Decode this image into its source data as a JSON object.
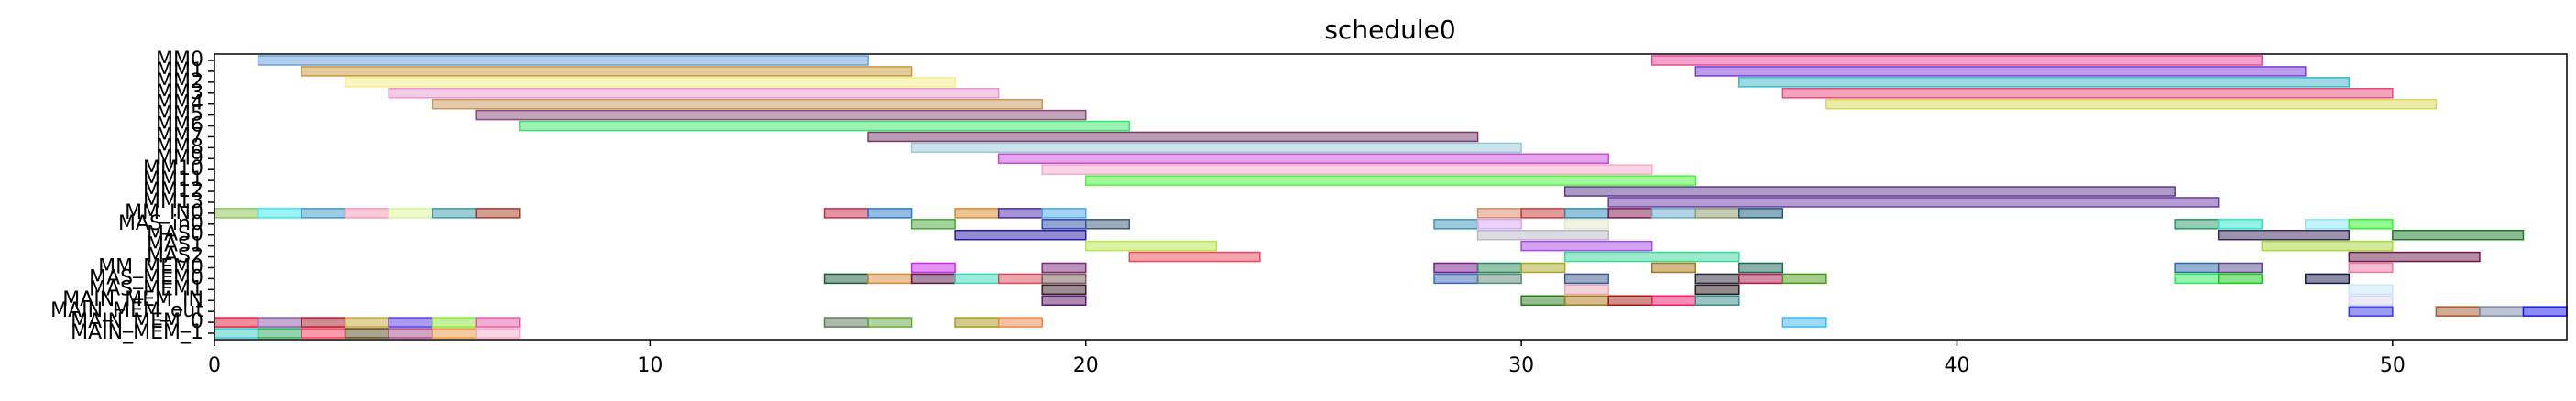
{
  "chart_data": {
    "type": "gantt",
    "title": "schedule0",
    "xlim": [
      0,
      54
    ],
    "xticks": [
      0,
      10,
      20,
      30,
      40,
      50
    ],
    "rows": [
      {
        "label": "MM0",
        "tasks": [
          {
            "start": 1,
            "end": 15,
            "color": "#6a9fd8"
          },
          {
            "start": 33,
            "end": 47,
            "color": "#e8489a"
          }
        ]
      },
      {
        "label": "MM1",
        "tasks": [
          {
            "start": 2,
            "end": 16,
            "color": "#c89a3a"
          },
          {
            "start": 34,
            "end": 48,
            "color": "#7a3ad8"
          }
        ]
      },
      {
        "label": "MM2",
        "tasks": [
          {
            "start": 3,
            "end": 17,
            "color": "#f4ee8a"
          },
          {
            "start": 35,
            "end": 49,
            "color": "#3ab8c8"
          }
        ]
      },
      {
        "label": "MM3",
        "tasks": [
          {
            "start": 4,
            "end": 18,
            "color": "#e898d0"
          },
          {
            "start": 36,
            "end": 50,
            "color": "#e84a7a"
          }
        ]
      },
      {
        "label": "MM4",
        "tasks": [
          {
            "start": 5,
            "end": 19,
            "color": "#c8985a"
          },
          {
            "start": 37,
            "end": 51,
            "color": "#d8d85a"
          }
        ]
      },
      {
        "label": "MM5",
        "tasks": [
          {
            "start": 6,
            "end": 20,
            "color": "#8a4a7a"
          }
        ]
      },
      {
        "label": "MM6",
        "tasks": [
          {
            "start": 7,
            "end": 21,
            "color": "#3ae86a"
          }
        ]
      },
      {
        "label": "MM7",
        "tasks": [
          {
            "start": 15,
            "end": 29,
            "color": "#7a3a6a"
          }
        ]
      },
      {
        "label": "MM8",
        "tasks": [
          {
            "start": 16,
            "end": 30,
            "color": "#98c8d8"
          }
        ]
      },
      {
        "label": "MM9",
        "tasks": [
          {
            "start": 18,
            "end": 32,
            "color": "#c84ad8"
          }
        ]
      },
      {
        "label": "MM10",
        "tasks": [
          {
            "start": 19,
            "end": 33,
            "color": "#f8a8c8"
          }
        ]
      },
      {
        "label": "MM11",
        "tasks": [
          {
            "start": 20,
            "end": 34,
            "color": "#4af83a"
          }
        ]
      },
      {
        "label": "MM12",
        "tasks": [
          {
            "start": 31,
            "end": 45,
            "color": "#5a3a8a"
          }
        ]
      },
      {
        "label": "MM13",
        "tasks": [
          {
            "start": 32,
            "end": 46,
            "color": "#6a3aa8"
          }
        ]
      },
      {
        "label": "MM_IN0",
        "tasks": [
          {
            "start": 0,
            "end": 1,
            "color": "#8ac85a"
          },
          {
            "start": 1,
            "end": 2,
            "color": "#3ae8e8"
          },
          {
            "start": 2,
            "end": 3,
            "color": "#3a9ac8"
          },
          {
            "start": 3,
            "end": 4,
            "color": "#f898b8"
          },
          {
            "start": 4,
            "end": 5,
            "color": "#d8f89a"
          },
          {
            "start": 5,
            "end": 6,
            "color": "#3a9aaa"
          },
          {
            "start": 6,
            "end": 7,
            "color": "#a83a2a"
          },
          {
            "start": 14,
            "end": 15,
            "color": "#c82a4a"
          },
          {
            "start": 15,
            "end": 16,
            "color": "#2a7ac8"
          },
          {
            "start": 17,
            "end": 18,
            "color": "#d8882a"
          },
          {
            "start": 18,
            "end": 19,
            "color": "#4a2aa8"
          },
          {
            "start": 19,
            "end": 20,
            "color": "#4aa8e8"
          },
          {
            "start": 29,
            "end": 30,
            "color": "#d8886a"
          },
          {
            "start": 30,
            "end": 31,
            "color": "#c83a3a"
          },
          {
            "start": 31,
            "end": 32,
            "color": "#2a8ab8"
          },
          {
            "start": 32,
            "end": 33,
            "color": "#7a1a4a"
          },
          {
            "start": 33,
            "end": 34,
            "color": "#6aa8c8"
          },
          {
            "start": 34,
            "end": 35,
            "color": "#8a9a6a"
          },
          {
            "start": 35,
            "end": 36,
            "color": "#1a5a7a"
          }
        ]
      },
      {
        "label": "MAS_in0",
        "tasks": [
          {
            "start": 16,
            "end": 17,
            "color": "#4aa83a"
          },
          {
            "start": 19,
            "end": 20,
            "color": "#2a4aa8"
          },
          {
            "start": 20,
            "end": 21,
            "color": "#3a5a7a"
          },
          {
            "start": 28,
            "end": 29,
            "color": "#3a98b8"
          },
          {
            "start": 29,
            "end": 30,
            "color": "#d8a8f8"
          },
          {
            "start": 31,
            "end": 32,
            "color": "#e8e8c8"
          },
          {
            "start": 45,
            "end": 46,
            "color": "#2a9a6a"
          },
          {
            "start": 46,
            "end": 47,
            "color": "#2ae8c8"
          },
          {
            "start": 48,
            "end": 49,
            "color": "#8ae8f8"
          },
          {
            "start": 49,
            "end": 50,
            "color": "#2af82a"
          }
        ]
      },
      {
        "label": "MAS0",
        "tasks": [
          {
            "start": 17,
            "end": 20,
            "color": "#2a1aa8"
          },
          {
            "start": 29,
            "end": 32,
            "color": "#b8b8c8"
          },
          {
            "start": 46,
            "end": 49,
            "color": "#3a2a5a"
          },
          {
            "start": 50,
            "end": 53,
            "color": "#1a7a2a"
          }
        ]
      },
      {
        "label": "MAS1",
        "tasks": [
          {
            "start": 20,
            "end": 23,
            "color": "#b8e84a"
          },
          {
            "start": 30,
            "end": 33,
            "color": "#a84ae8"
          },
          {
            "start": 47,
            "end": 50,
            "color": "#a8d83a"
          }
        ]
      },
      {
        "label": "MAS2",
        "tasks": [
          {
            "start": 21,
            "end": 24,
            "color": "#e84a5a"
          },
          {
            "start": 31,
            "end": 35,
            "color": "#3ad89a"
          },
          {
            "start": 49,
            "end": 52,
            "color": "#6a1a4a"
          }
        ]
      },
      {
        "label": "MM_MEM0",
        "tasks": [
          {
            "start": 16,
            "end": 17,
            "color": "#c82ae8"
          },
          {
            "start": 19,
            "end": 20,
            "color": "#7a2a7a"
          },
          {
            "start": 28,
            "end": 29,
            "color": "#7a1a8a"
          },
          {
            "start": 29,
            "end": 30,
            "color": "#2a8a5a"
          },
          {
            "start": 30,
            "end": 31,
            "color": "#a8a82a"
          },
          {
            "start": 33,
            "end": 34,
            "color": "#a8781a"
          },
          {
            "start": 35,
            "end": 36,
            "color": "#1a6a5a"
          },
          {
            "start": 45,
            "end": 46,
            "color": "#2a6aa8"
          },
          {
            "start": 46,
            "end": 47,
            "color": "#5a4a8a"
          },
          {
            "start": 49,
            "end": 50,
            "color": "#e87aa8"
          }
        ]
      },
      {
        "label": "MAS_MEM0",
        "tasks": [
          {
            "start": 14,
            "end": 15,
            "color": "#1a5a3a"
          },
          {
            "start": 15,
            "end": 16,
            "color": "#d88a3a"
          },
          {
            "start": 16,
            "end": 17,
            "color": "#5a1a4a"
          },
          {
            "start": 17,
            "end": 18,
            "color": "#3ad8b8"
          },
          {
            "start": 18,
            "end": 19,
            "color": "#d84a5a"
          },
          {
            "start": 19,
            "end": 20,
            "color": "#7a5a5a"
          },
          {
            "start": 28,
            "end": 29,
            "color": "#3a6ab8"
          },
          {
            "start": 29,
            "end": 30,
            "color": "#5a8a7a"
          },
          {
            "start": 31,
            "end": 32,
            "color": "#3a5a8a"
          },
          {
            "start": 34,
            "end": 35,
            "color": "#2a2a3a"
          },
          {
            "start": 35,
            "end": 36,
            "color": "#a81a4a"
          },
          {
            "start": 36,
            "end": 37,
            "color": "#4a9a1a"
          },
          {
            "start": 45,
            "end": 46,
            "color": "#2ae85a"
          },
          {
            "start": 46,
            "end": 47,
            "color": "#1ac81a"
          },
          {
            "start": 48,
            "end": 49,
            "color": "#1a1a4a"
          }
        ]
      },
      {
        "label": "MAS_MEM1",
        "tasks": [
          {
            "start": 19,
            "end": 20,
            "color": "#3a1a2a"
          },
          {
            "start": 31,
            "end": 32,
            "color": "#e8a8b8"
          },
          {
            "start": 34,
            "end": 35,
            "color": "#2a1a1a"
          },
          {
            "start": 49,
            "end": 50,
            "color": "#c8e8f8"
          }
        ]
      },
      {
        "label": "MAIN_MEM_IN",
        "tasks": [
          {
            "start": 19,
            "end": 20,
            "color": "#5a1a6a"
          },
          {
            "start": 30,
            "end": 31,
            "color": "#2a7a1a"
          },
          {
            "start": 31,
            "end": 32,
            "color": "#a8781a"
          },
          {
            "start": 32,
            "end": 33,
            "color": "#a81a1a"
          },
          {
            "start": 33,
            "end": 34,
            "color": "#f81a6a"
          },
          {
            "start": 34,
            "end": 35,
            "color": "#3a8a8a"
          },
          {
            "start": 49,
            "end": 50,
            "color": "#d8d8f8"
          }
        ]
      },
      {
        "label": "MAIN_MEM_out",
        "tasks": [
          {
            "start": 49,
            "end": 50,
            "color": "#3a3ae8"
          },
          {
            "start": 51,
            "end": 52,
            "color": "#a8582a"
          },
          {
            "start": 52,
            "end": 53,
            "color": "#7a8aa8"
          },
          {
            "start": 53,
            "end": 54,
            "color": "#1a1ae8"
          }
        ]
      },
      {
        "label": "MAIN_MEM_0",
        "tasks": [
          {
            "start": 0,
            "end": 1,
            "color": "#e81a3a"
          },
          {
            "start": 1,
            "end": 2,
            "color": "#8a5aa8"
          },
          {
            "start": 2,
            "end": 3,
            "color": "#a81a2a"
          },
          {
            "start": 3,
            "end": 4,
            "color": "#c8a83a"
          },
          {
            "start": 4,
            "end": 5,
            "color": "#5a3ae8"
          },
          {
            "start": 5,
            "end": 6,
            "color": "#8ae83a"
          },
          {
            "start": 6,
            "end": 7,
            "color": "#e85aa8"
          },
          {
            "start": 14,
            "end": 15,
            "color": "#5a7a5a"
          },
          {
            "start": 15,
            "end": 16,
            "color": "#6aa83a"
          },
          {
            "start": 17,
            "end": 18,
            "color": "#a89a1a"
          },
          {
            "start": 18,
            "end": 19,
            "color": "#e8884a"
          },
          {
            "start": 36,
            "end": 37,
            "color": "#3ab8f8"
          }
        ]
      },
      {
        "label": "MAIN_MEM_1",
        "tasks": [
          {
            "start": 0,
            "end": 1,
            "color": "#3ac8c8"
          },
          {
            "start": 1,
            "end": 2,
            "color": "#2aa85a"
          },
          {
            "start": 2,
            "end": 3,
            "color": "#f83a5a"
          },
          {
            "start": 3,
            "end": 4,
            "color": "#5a4a1a"
          },
          {
            "start": 4,
            "end": 5,
            "color": "#a84a8a"
          },
          {
            "start": 5,
            "end": 6,
            "color": "#e8983a"
          },
          {
            "start": 6,
            "end": 7,
            "color": "#f8a8c8"
          }
        ]
      }
    ]
  }
}
